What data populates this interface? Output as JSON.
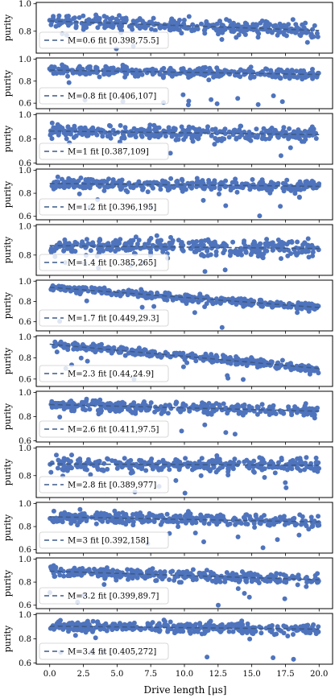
{
  "chart_data": {
    "type": "scatter",
    "xlabel": "Drive length [μs]",
    "ylabel": "purity",
    "xlim": [
      -1,
      21
    ],
    "x_ticks": [
      "0.0",
      "2.5",
      "5.0",
      "7.5",
      "10.0",
      "12.5",
      "15.0",
      "17.5",
      "20.0"
    ],
    "legend_placement": "lower-left",
    "colors": {
      "points": "#4f74bd",
      "fit": "#3d5a86",
      "frame": "#000000"
    },
    "panels": [
      {
        "fit_label": "M=0.6 fit [0.398,75.5]",
        "ylim": [
          0.64,
          1.01
        ],
        "y_ticks": [
          "0.8",
          "1.0"
        ],
        "fit": [
          [
            0,
            0.875
          ],
          [
            20,
            0.805
          ]
        ]
      },
      {
        "fit_label": "M=0.8 fit [0.406,107]",
        "ylim": [
          0.55,
          1.01
        ],
        "y_ticks": [
          "0.6",
          "0.8",
          "1.0"
        ],
        "fit": [
          [
            0,
            0.9
          ],
          [
            20,
            0.86
          ]
        ]
      },
      {
        "fit_label": "M=1 fit [0.387,109]",
        "ylim": [
          0.59,
          1.01
        ],
        "y_ticks": [
          "0.6",
          "0.8",
          "1.0"
        ],
        "fit": [
          [
            0,
            0.865
          ],
          [
            20,
            0.835
          ]
        ]
      },
      {
        "fit_label": "M=1.2 fit [0.396,195]",
        "ylim": [
          0.57,
          1.01
        ],
        "y_ticks": [
          "0.6",
          "0.8",
          "1.0"
        ],
        "fit": [
          [
            0,
            0.885
          ],
          [
            20,
            0.86
          ]
        ]
      },
      {
        "fit_label": "M=1.4 fit [0.385,265]",
        "ylim": [
          0.66,
          1.01
        ],
        "y_ticks": [
          "0.8",
          "1.0"
        ],
        "fit": [
          [
            0,
            0.865
          ],
          [
            20,
            0.845
          ]
        ]
      },
      {
        "fit_label": "M=1.7 fit [0.449,29.3]",
        "ylim": [
          0.51,
          1.01
        ],
        "y_ticks": [
          "0.6",
          "0.8",
          "1.0"
        ],
        "fit": [
          [
            0,
            0.94
          ],
          [
            20,
            0.74
          ]
        ]
      },
      {
        "fit_label": "M=2.3 fit [0.44,24.9]",
        "ylim": [
          0.53,
          1.01
        ],
        "y_ticks": [
          "0.6",
          "0.8",
          "1.0"
        ],
        "fit": [
          [
            0,
            0.93
          ],
          [
            20,
            0.7
          ]
        ]
      },
      {
        "fit_label": "M=2.6 fit [0.411,97.5]",
        "ylim": [
          0.59,
          1.01
        ],
        "y_ticks": [
          "0.6",
          "0.8",
          "1.0"
        ],
        "fit": [
          [
            0,
            0.9
          ],
          [
            20,
            0.845
          ]
        ]
      },
      {
        "fit_label": "M=2.8 fit [0.389,977]",
        "ylim": [
          0.64,
          1.01
        ],
        "y_ticks": [
          "0.8",
          "1.0"
        ],
        "fit": [
          [
            0,
            0.885
          ],
          [
            20,
            0.875
          ]
        ]
      },
      {
        "fit_label": "M=3 fit [0.392,158]",
        "ylim": [
          0.57,
          1.01
        ],
        "y_ticks": [
          "0.6",
          "0.8",
          "1.0"
        ],
        "fit": [
          [
            0,
            0.885
          ],
          [
            20,
            0.84
          ]
        ]
      },
      {
        "fit_label": "M=3.2 fit [0.399,89.7]",
        "ylim": [
          0.57,
          1.01
        ],
        "y_ticks": [
          "0.6",
          "0.8",
          "1.0"
        ],
        "fit": [
          [
            0,
            0.895
          ],
          [
            20,
            0.82
          ]
        ]
      },
      {
        "fit_label": "M=3.4 fit [0.405,272]",
        "ylim": [
          0.59,
          1.01
        ],
        "y_ticks": [
          "0.6",
          "0.8",
          "1.0"
        ],
        "fit": [
          [
            0,
            0.905
          ],
          [
            20,
            0.88
          ]
        ]
      }
    ]
  }
}
